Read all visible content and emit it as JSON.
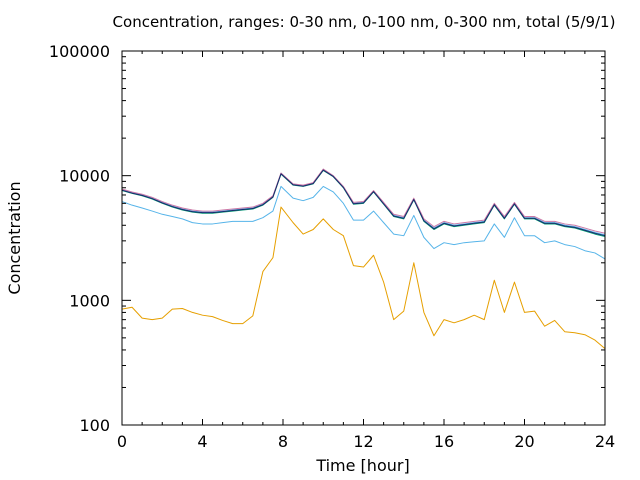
{
  "chart_data": {
    "type": "line",
    "title": "Concentration, ranges: 0-30 nm, 0-100 nm, 0-300 nm, total (5/9/1)",
    "xlabel": "Time [hour]",
    "ylabel": "Concentration",
    "xlim": [
      0,
      24
    ],
    "ylim": [
      100,
      100000
    ],
    "yscale": "log",
    "grid": false,
    "legend": "none",
    "xticks": [
      0,
      4,
      8,
      12,
      16,
      20,
      24
    ],
    "xtick_labels": [
      "0",
      "4",
      "8",
      "12",
      "16",
      "20",
      "24"
    ],
    "yticks": [
      100,
      1000,
      10000,
      100000
    ],
    "ytick_labels": [
      "100",
      "1000",
      "10000",
      "100000"
    ],
    "x": [
      0,
      0.5,
      1,
      1.5,
      2,
      2.5,
      3,
      3.5,
      4,
      4.5,
      5,
      5.5,
      6,
      6.5,
      7,
      7.5,
      7.9,
      8.5,
      9,
      9.5,
      10,
      10.5,
      11,
      11.5,
      12,
      12.5,
      13,
      13.5,
      14,
      14.5,
      15,
      15.5,
      16,
      16.5,
      17,
      17.5,
      18,
      18.5,
      19,
      19.5,
      20,
      20.5,
      21,
      21.5,
      22,
      22.5,
      23,
      23.5,
      24
    ],
    "series": [
      {
        "color": "#e69f00",
        "values": [
          850,
          880,
          720,
          700,
          720,
          850,
          860,
          800,
          760,
          740,
          690,
          650,
          650,
          750,
          1700,
          2200,
          5600,
          4200,
          3400,
          3700,
          4500,
          3700,
          3300,
          1900,
          1850,
          2300,
          1400,
          700,
          820,
          2000,
          800,
          520,
          700,
          660,
          700,
          760,
          700,
          1450,
          800,
          1400,
          800,
          820,
          620,
          690,
          560,
          550,
          530,
          480,
          410
        ]
      },
      {
        "color": "#56b4e9",
        "values": [
          6200,
          5800,
          5500,
          5200,
          4900,
          4700,
          4500,
          4200,
          4100,
          4100,
          4200,
          4300,
          4300,
          4300,
          4600,
          5200,
          8200,
          6600,
          6300,
          6700,
          8200,
          7400,
          6000,
          4400,
          4400,
          5200,
          4200,
          3400,
          3300,
          4800,
          3200,
          2600,
          2900,
          2800,
          2900,
          2950,
          3000,
          4100,
          3200,
          4600,
          3300,
          3300,
          2900,
          3000,
          2800,
          2700,
          2500,
          2400,
          2150
        ]
      },
      {
        "color": "#009e73",
        "values": [
          7600,
          7200,
          6900,
          6500,
          6000,
          5600,
          5300,
          5100,
          5000,
          5000,
          5100,
          5200,
          5300,
          5400,
          5800,
          6700,
          10300,
          8400,
          8200,
          8600,
          11000,
          9800,
          8000,
          5900,
          6000,
          7400,
          5900,
          4700,
          4500,
          6400,
          4300,
          3700,
          4100,
          3900,
          4000,
          4100,
          4200,
          5800,
          4500,
          5900,
          4500,
          4500,
          4100,
          4100,
          3900,
          3800,
          3600,
          3400,
          3250
        ]
      },
      {
        "color": "#56b4e9",
        "values": [
          7700,
          7300,
          7000,
          6600,
          6100,
          5700,
          5400,
          5200,
          5100,
          5100,
          5200,
          5300,
          5400,
          5500,
          5900,
          6800,
          10400,
          8500,
          8300,
          8700,
          11200,
          9900,
          8100,
          6000,
          6100,
          7500,
          6000,
          4800,
          4600,
          6500,
          4400,
          3800,
          4200,
          4000,
          4100,
          4200,
          4300,
          5900,
          4600,
          6000,
          4600,
          4600,
          4200,
          4200,
          4000,
          3900,
          3700,
          3500,
          3350
        ]
      },
      {
        "color": "#cc79a7",
        "values": [
          7800,
          7400,
          7100,
          6700,
          6200,
          5800,
          5500,
          5300,
          5200,
          5200,
          5300,
          5400,
          5500,
          5600,
          6000,
          6900,
          10500,
          8600,
          8400,
          8800,
          11300,
          10000,
          8200,
          6100,
          6200,
          7600,
          6100,
          4900,
          4700,
          6600,
          4500,
          3900,
          4300,
          4100,
          4200,
          4300,
          4400,
          6000,
          4700,
          6100,
          4700,
          4700,
          4300,
          4300,
          4100,
          4000,
          3800,
          3600,
          3450
        ]
      },
      {
        "color": "#1a2a6c",
        "values": [
          7650,
          7250,
          6950,
          6550,
          6050,
          5650,
          5350,
          5150,
          5050,
          5050,
          5150,
          5250,
          5350,
          5450,
          5850,
          6750,
          10350,
          8450,
          8250,
          8650,
          11100,
          9850,
          8050,
          5950,
          6050,
          7450,
          5950,
          4750,
          4550,
          6450,
          4350,
          3750,
          4150,
          3950,
          4050,
          4150,
          4250,
          5850,
          4550,
          5950,
          4550,
          4550,
          4150,
          4150,
          3950,
          3850,
          3650,
          3450,
          3300
        ]
      }
    ]
  }
}
